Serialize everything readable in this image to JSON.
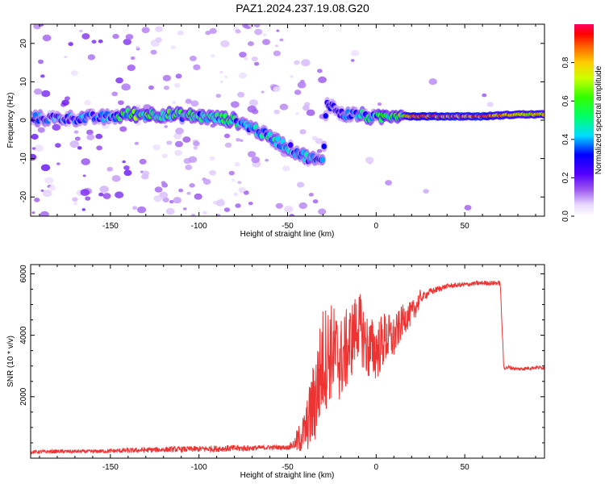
{
  "title": "PAZ1.2024.237.19.08.G20",
  "chart_data": [
    {
      "type": "heatmap",
      "xlabel": "Height of straight line (km)",
      "ylabel": "Frequency (Hz)",
      "xlim": [
        -195,
        95
      ],
      "ylim": [
        -25,
        25
      ],
      "xticks": [
        -150,
        -100,
        -50,
        0,
        50
      ],
      "yticks": [
        -20,
        -10,
        0,
        10,
        20
      ],
      "colorbar": {
        "label": "Normalized spectral amplitude",
        "range": [
          0,
          1
        ],
        "ticks": [
          0.0,
          0.2,
          0.4,
          0.6,
          0.8
        ]
      },
      "ridge": {
        "x": [
          -190,
          -170,
          -150,
          -140,
          -120,
          -100,
          -80,
          -70,
          -60,
          -50,
          -40,
          -30,
          -28,
          -20,
          -10,
          0,
          10,
          20,
          40,
          60,
          80,
          95
        ],
        "frequency": [
          0.5,
          0.5,
          0.8,
          1.5,
          1.5,
          1.0,
          0.0,
          -2.0,
          -4.5,
          -7.0,
          -9.5,
          -11.0,
          5.0,
          1.5,
          1.5,
          0.5,
          1.5,
          1.0,
          1.0,
          1.0,
          1.5,
          1.5
        ],
        "amplitude": [
          0.35,
          0.35,
          0.4,
          0.6,
          0.55,
          0.5,
          0.5,
          0.45,
          0.45,
          0.4,
          0.4,
          0.35,
          0.3,
          0.4,
          0.45,
          0.5,
          0.55,
          0.85,
          0.9,
          0.9,
          0.75,
          0.8
        ]
      },
      "grid": false
    },
    {
      "type": "line",
      "xlabel": "Height of straight line (km)",
      "ylabel": "SNR (10 * v/v)",
      "xlim": [
        -195,
        95
      ],
      "ylim": [
        0,
        6300
      ],
      "xticks": [
        -150,
        -100,
        -50,
        0,
        50
      ],
      "yticks": [
        2000,
        4000,
        6000
      ],
      "series": [
        {
          "color": "#ee3333",
          "x": [
            -195,
            -180,
            -160,
            -140,
            -120,
            -100,
            -80,
            -70,
            -60,
            -50,
            -45,
            -40,
            -35,
            -30,
            -25,
            -20,
            -15,
            -10,
            -5,
            0,
            5,
            10,
            15,
            20,
            25,
            30,
            40,
            50,
            60,
            65,
            70,
            72,
            75,
            80,
            90,
            95
          ],
          "y": [
            200,
            220,
            220,
            250,
            280,
            300,
            320,
            330,
            350,
            350,
            500,
            900,
            1800,
            3200,
            3500,
            3200,
            3700,
            4400,
            3600,
            3500,
            3900,
            3900,
            4500,
            4700,
            5200,
            5400,
            5600,
            5650,
            5700,
            5700,
            5700,
            2950,
            2950,
            2900,
            2950,
            2950
          ],
          "noise": [
            120,
            120,
            120,
            160,
            180,
            200,
            220,
            180,
            150,
            150,
            400,
            700,
            1500,
            1800,
            1600,
            1400,
            1300,
            1100,
            1100,
            1000,
            900,
            700,
            500,
            400,
            300,
            250,
            150,
            150,
            150,
            150,
            150,
            150,
            120,
            120,
            120,
            120
          ]
        }
      ],
      "grid": false
    }
  ]
}
